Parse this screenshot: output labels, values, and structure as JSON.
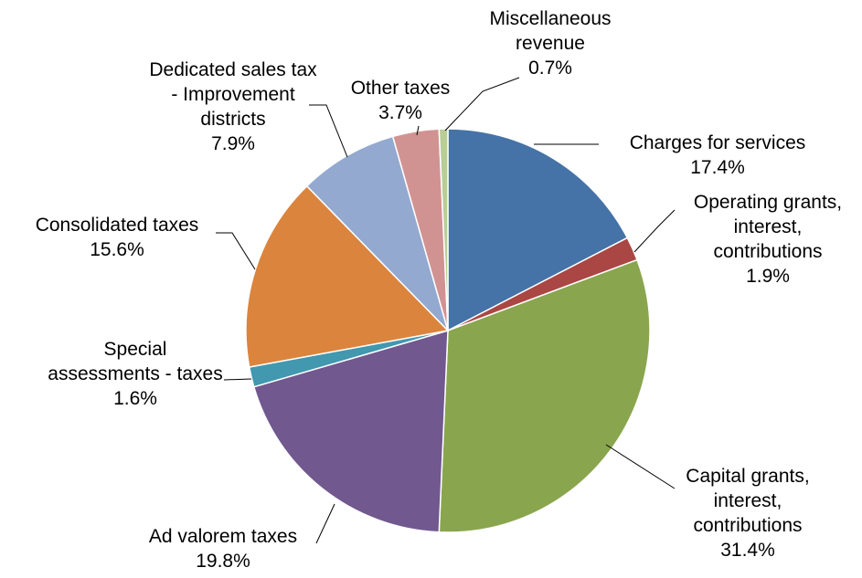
{
  "chart_data": {
    "type": "pie",
    "title": "",
    "slices": [
      {
        "label": [
          "Charges for services"
        ],
        "value": 17.4,
        "value_label": "17.4%",
        "color": "#4572a7"
      },
      {
        "label": [
          "Operating grants,",
          "interest,",
          "contributions"
        ],
        "value": 1.9,
        "value_label": "1.9%",
        "color": "#aa4643"
      },
      {
        "label": [
          "Capital grants,",
          "interest,",
          "contributions"
        ],
        "value": 31.4,
        "value_label": "31.4%",
        "color": "#89a54e"
      },
      {
        "label": [
          "Ad valorem taxes"
        ],
        "value": 19.8,
        "value_label": "19.8%",
        "color": "#71588f"
      },
      {
        "label": [
          "Special",
          "assessments - taxes"
        ],
        "value": 1.6,
        "value_label": "1.6%",
        "color": "#4198af"
      },
      {
        "label": [
          "Consolidated taxes"
        ],
        "value": 15.6,
        "value_label": "15.6%",
        "color": "#db843d"
      },
      {
        "label": [
          "Dedicated sales tax",
          "- Improvement",
          "districts"
        ],
        "value": 7.9,
        "value_label": "7.9%",
        "color": "#93a9cf"
      },
      {
        "label": [
          "Other taxes"
        ],
        "value": 3.7,
        "value_label": "3.7%",
        "color": "#d19392"
      },
      {
        "label": [
          "Miscellaneous",
          "revenue"
        ],
        "value": 0.7,
        "value_label": "0.7%",
        "color": "#b9cd96"
      }
    ]
  }
}
